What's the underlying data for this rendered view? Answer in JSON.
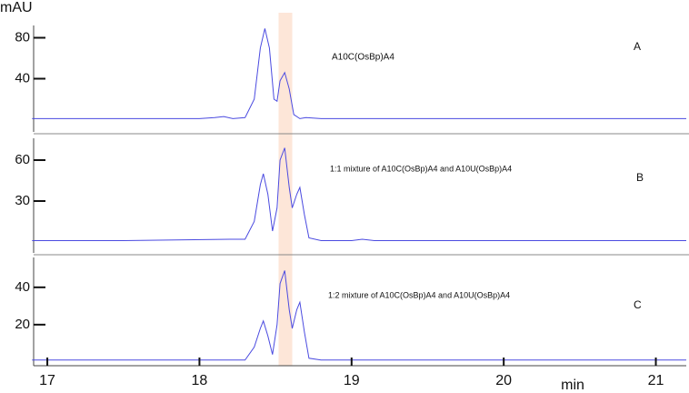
{
  "chart_data": [
    {
      "type": "line",
      "ylabel": "mAU",
      "annotations": [
        "A10C(OsBp)A4",
        "A"
      ],
      "xlim": [
        16.91,
        21.2
      ],
      "ylim": [
        -12,
        92
      ],
      "yticks": [
        40,
        80
      ],
      "color": "#4a4ae0",
      "x": [
        16.9,
        17.5,
        18.0,
        18.1,
        18.16,
        18.22,
        18.3,
        18.36,
        18.4,
        18.43,
        18.46,
        18.49,
        18.51,
        18.53,
        18.56,
        18.59,
        18.62,
        18.66,
        18.7,
        18.8,
        19.5,
        20.5,
        21.2
      ],
      "values": [
        1,
        1,
        1,
        2,
        3,
        1,
        2,
        20,
        70,
        89,
        70,
        20,
        18,
        38,
        46,
        30,
        5,
        1,
        2,
        1,
        1,
        1,
        1
      ]
    },
    {
      "type": "line",
      "annotations": [
        "1:1 mixture of A10C(OsBp)A4  and A10U(OsBp)A4",
        "B"
      ],
      "xlim": [
        16.91,
        21.2
      ],
      "ylim": [
        -8,
        76
      ],
      "yticks": [
        30,
        60
      ],
      "color": "#4a4ae0",
      "x": [
        16.9,
        17.5,
        18.2,
        18.3,
        18.36,
        18.4,
        18.42,
        18.45,
        18.48,
        18.51,
        18.53,
        18.56,
        18.59,
        18.61,
        18.64,
        18.66,
        18.69,
        18.72,
        18.8,
        19.0,
        19.07,
        19.15,
        20.0,
        21.2
      ],
      "values": [
        1,
        1,
        2,
        2,
        15,
        42,
        50,
        35,
        8,
        25,
        60,
        69,
        40,
        25,
        35,
        40,
        20,
        3,
        1,
        1,
        2,
        1,
        1,
        1
      ]
    },
    {
      "type": "line",
      "annotations": [
        "1:2 mixture of A10C(OsBp)A4 and A10U(OsBp)A4",
        "C"
      ],
      "xlim": [
        16.91,
        21.2
      ],
      "ylim": [
        -2,
        56
      ],
      "yticks": [
        20,
        40
      ],
      "color": "#4a4ae0",
      "xticks": [
        17,
        18,
        19,
        20,
        21
      ],
      "xlabel": "min",
      "x": [
        16.9,
        17.5,
        18.2,
        18.3,
        18.36,
        18.4,
        18.42,
        18.45,
        18.48,
        18.51,
        18.53,
        18.56,
        18.59,
        18.61,
        18.64,
        18.66,
        18.69,
        18.72,
        18.8,
        19.0,
        19.07,
        19.15,
        20.0,
        21.2
      ],
      "values": [
        1,
        1,
        1,
        1,
        8,
        18,
        22,
        14,
        4,
        20,
        42,
        49,
        28,
        18,
        28,
        32,
        16,
        2,
        1,
        1,
        1,
        1,
        1,
        1
      ]
    }
  ],
  "highlight": {
    "xrange": [
      18.52,
      18.61
    ],
    "color": "#fde6d8"
  }
}
